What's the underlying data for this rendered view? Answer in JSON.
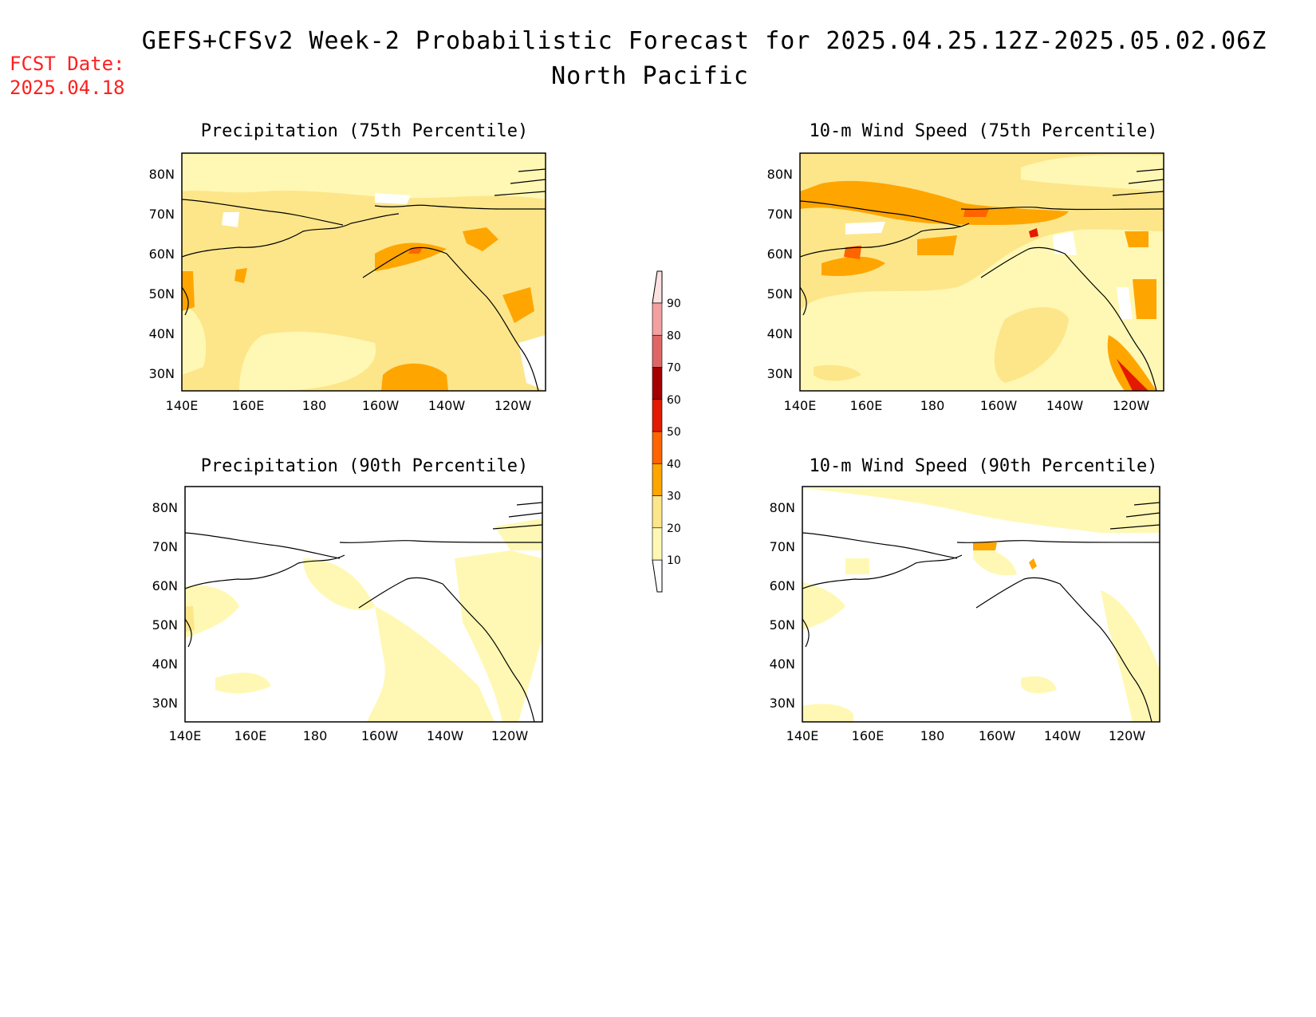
{
  "header": {
    "title": "GEFS+CFSv2 Week-2 Probabilistic Forecast for 2025.04.25.12Z-2025.05.02.06Z",
    "subtitle": "North Pacific",
    "fcst_label": "FCST Date:",
    "fcst_date": "2025.04.18"
  },
  "panels": [
    {
      "id": "precip75",
      "title": "Precipitation (75th Percentile)"
    },
    {
      "id": "wind75",
      "title": "10-m Wind Speed (75th Percentile)"
    },
    {
      "id": "precip90",
      "title": "Precipitation (90th Percentile)"
    },
    {
      "id": "wind90",
      "title": "10-m Wind Speed (90th Percentile)"
    }
  ],
  "axes": {
    "lat_labels": [
      "80N",
      "70N",
      "60N",
      "50N",
      "40N",
      "30N"
    ],
    "lon_labels": [
      "140E",
      "160E",
      "180",
      "160W",
      "140W",
      "120W"
    ]
  },
  "colorbar": {
    "levels": [
      "10",
      "20",
      "30",
      "40",
      "50",
      "60",
      "70",
      "80",
      "90"
    ],
    "colors": [
      "#fff8b4",
      "#fde68a",
      "#ffa500",
      "#ff6400",
      "#e31a00",
      "#a50000",
      "#e06666",
      "#f4a0a0",
      "#fde0e0"
    ]
  }
}
